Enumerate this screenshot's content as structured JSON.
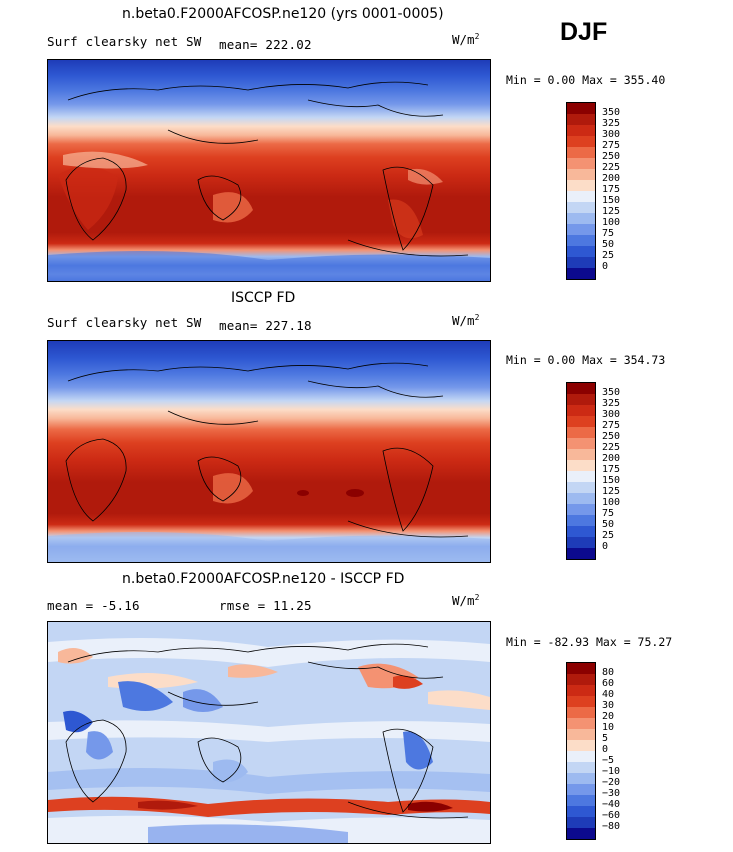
{
  "season": "DJF",
  "panels": [
    {
      "title": "n.beta0.F2000AFCOSP.ne120 (yrs 0001-0005)",
      "left_label": "Surf clearsky net SW",
      "stat_label": "mean= 222.02",
      "units_base": "W/m",
      "units_exp": "2",
      "minmax": "Min =    0.00 Max = 355.40",
      "colorbar": {
        "colors": [
          "#8b0000",
          "#b01a0c",
          "#cc2a14",
          "#dd4020",
          "#ec6a46",
          "#f49272",
          "#f8b89a",
          "#fcddc8",
          "#eaf0fa",
          "#c3d6f4",
          "#9dbaf0",
          "#7598ea",
          "#4d78e0",
          "#2e58d2",
          "#1e3cb8",
          "#0c0a8e"
        ],
        "labels": [
          "350",
          "325",
          "300",
          "275",
          "250",
          "225",
          "200",
          "175",
          "150",
          "125",
          "100",
          "75",
          "50",
          "25",
          "0"
        ]
      }
    },
    {
      "title": "ISCCP FD",
      "left_label": "Surf clearsky net SW",
      "stat_label": "mean= 227.18",
      "units_base": "W/m",
      "units_exp": "2",
      "minmax": "Min =    0.00 Max = 354.73",
      "colorbar": {
        "colors": [
          "#8b0000",
          "#b01a0c",
          "#cc2a14",
          "#dd4020",
          "#ec6a46",
          "#f49272",
          "#f8b89a",
          "#fcddc8",
          "#eaf0fa",
          "#c3d6f4",
          "#9dbaf0",
          "#7598ea",
          "#4d78e0",
          "#2e58d2",
          "#1e3cb8",
          "#0c0a8e"
        ],
        "labels": [
          "350",
          "325",
          "300",
          "275",
          "250",
          "225",
          "200",
          "175",
          "150",
          "125",
          "100",
          "75",
          "50",
          "25",
          "0"
        ]
      }
    },
    {
      "title": "n.beta0.F2000AFCOSP.ne120 - ISCCP FD",
      "left_label": "mean =   -5.16",
      "stat_label": "rmse =   11.25",
      "units_base": "W/m",
      "units_exp": "2",
      "minmax": "Min = -82.93 Max =  75.27",
      "colorbar": {
        "colors": [
          "#8b0000",
          "#b01a0c",
          "#cc2a14",
          "#dd4020",
          "#ec6a46",
          "#f49272",
          "#f8b89a",
          "#fcddc8",
          "#eaf0fa",
          "#c3d6f4",
          "#9dbaf0",
          "#7598ea",
          "#4d78e0",
          "#2e58d2",
          "#1e3cb8",
          "#0c0a8e"
        ],
        "labels": [
          "80",
          "60",
          "40",
          "30",
          "20",
          "10",
          "5",
          "0",
          "−5",
          "−10",
          "−20",
          "−30",
          "−40",
          "−60",
          "−80"
        ]
      }
    }
  ]
}
